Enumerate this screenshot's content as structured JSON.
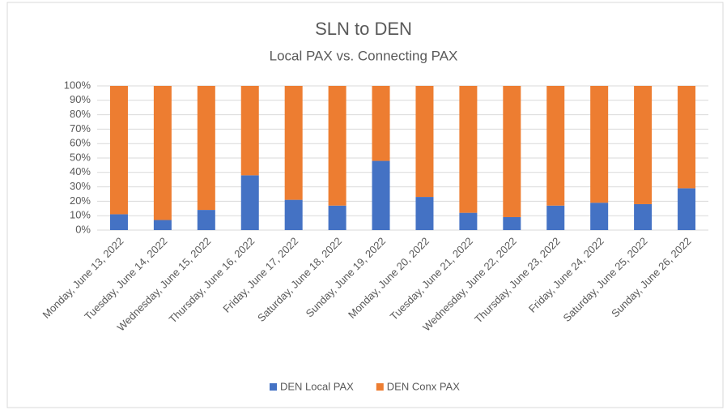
{
  "chart_data": {
    "type": "stacked_bar",
    "title": "SLN to DEN",
    "subtitle": "Local PAX vs. Connecting PAX",
    "categories": [
      "Monday, June 13, 2022",
      "Tuesday, June 14, 2022",
      "Wednesday, June 15, 2022",
      "Thursday, June 16, 2022",
      "Friday, June 17, 2022",
      "Saturday, June 18, 2022",
      "Sunday, June 19, 2022",
      "Monday, June 20, 2022",
      "Tuesday, June 21, 2022",
      "Wednesday, June 22, 2022",
      "Thursday, June 23, 2022",
      "Friday, June 24, 2022",
      "Saturday, June 25, 2022",
      "Sunday, June 26, 2022"
    ],
    "series": [
      {
        "name": "DEN Local PAX",
        "color": "#4472c4",
        "values": [
          11,
          7,
          14,
          38,
          21,
          17,
          48,
          23,
          12,
          9,
          17,
          19,
          18,
          29
        ]
      },
      {
        "name": "DEN Conx PAX",
        "color": "#ed7d31",
        "values": [
          89,
          93,
          86,
          62,
          79,
          83,
          52,
          77,
          88,
          91,
          83,
          81,
          82,
          71
        ]
      }
    ],
    "ylim": [
      0,
      100
    ],
    "yticks": [
      {
        "value": 0,
        "label": "0%"
      },
      {
        "value": 10,
        "label": "10%"
      },
      {
        "value": 20,
        "label": "20%"
      },
      {
        "value": 30,
        "label": "30%"
      },
      {
        "value": 40,
        "label": "40%"
      },
      {
        "value": 50,
        "label": "50%"
      },
      {
        "value": 60,
        "label": "60%"
      },
      {
        "value": 70,
        "label": "70%"
      },
      {
        "value": 80,
        "label": "80%"
      },
      {
        "value": 90,
        "label": "90%"
      },
      {
        "value": 100,
        "label": "100%"
      }
    ],
    "grid": true,
    "legend": "bottom"
  }
}
